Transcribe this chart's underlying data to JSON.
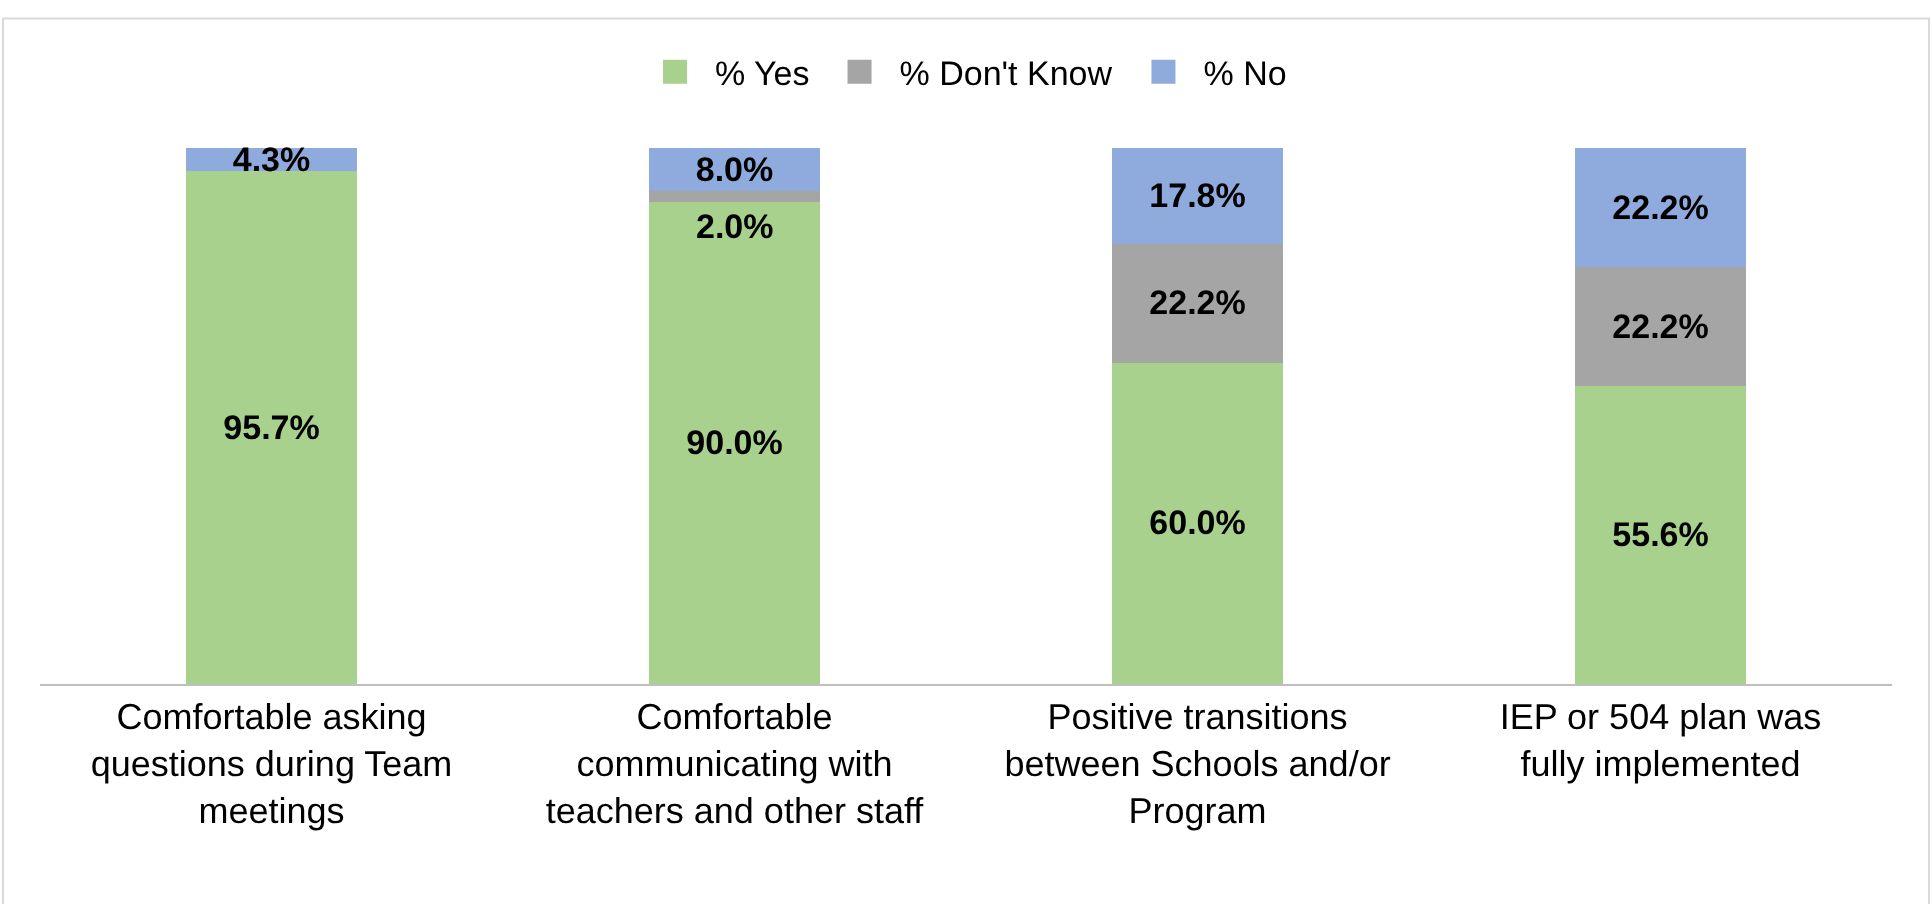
{
  "chart_data": {
    "type": "bar",
    "stacked": true,
    "legend": "top",
    "tick_labels": "x",
    "categories": [
      "Comfortable asking questions during Team meetings",
      "Comfortable communicating with teachers and other staff",
      "Positive transitions between Schools and/or Program",
      "IEP or 504 plan was fully implemented"
    ],
    "series": [
      {
        "name": "% Yes",
        "color": "#a9d18e",
        "values": [
          95.7,
          90.0,
          60.0,
          55.6
        ],
        "value_labels": [
          "95.7%",
          "90.0%",
          "60.0%",
          "55.6%"
        ]
      },
      {
        "name": "% Don't Know",
        "color": "#a5a5a5",
        "values": [
          null,
          2.0,
          22.2,
          22.2
        ],
        "value_labels": [
          null,
          "2.0%",
          "22.2%",
          "22.2%"
        ]
      },
      {
        "name": "% No",
        "color": "#8faadc",
        "values": [
          4.3,
          8.0,
          17.8,
          22.2
        ],
        "value_labels": [
          "4.3%",
          "8.0%",
          "17.8%",
          "22.2%"
        ]
      }
    ]
  }
}
